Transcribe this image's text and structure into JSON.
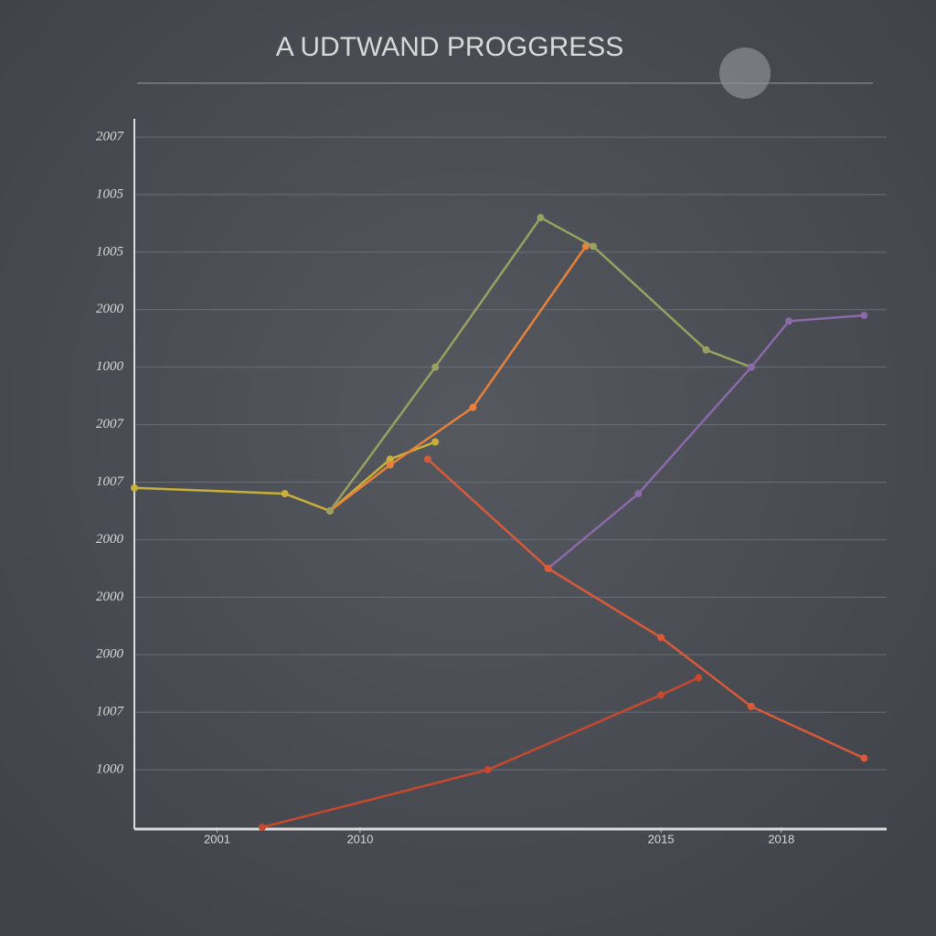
{
  "chart_data": {
    "type": "line",
    "title": "A UDTWAND PROGGRESS",
    "xlim": [
      0,
      100
    ],
    "ylim": [
      0,
      12
    ],
    "xticks": [
      {
        "value": 11,
        "label": "2001"
      },
      {
        "value": 30,
        "label": "2010"
      },
      {
        "value": 70,
        "label": "2015"
      },
      {
        "value": 86,
        "label": "2018"
      }
    ],
    "yticks": [
      {
        "value": 1,
        "label": "1000"
      },
      {
        "value": 2,
        "label": "1007"
      },
      {
        "value": 3,
        "label": "2000"
      },
      {
        "value": 4,
        "label": "2000"
      },
      {
        "value": 5,
        "label": "2000"
      },
      {
        "value": 6,
        "label": "1007"
      },
      {
        "value": 7,
        "label": "2007"
      },
      {
        "value": 8,
        "label": "1000"
      },
      {
        "value": 9,
        "label": "2000"
      },
      {
        "value": 10,
        "label": "1005"
      },
      {
        "value": 11,
        "label": "1005"
      },
      {
        "value": 12,
        "label": "2007"
      }
    ],
    "grid": true,
    "series": [
      {
        "color": "#c9b03a",
        "x": [
          0,
          20,
          26,
          34,
          40
        ],
        "values": [
          5.9,
          5.8,
          5.5,
          6.4,
          6.7
        ]
      },
      {
        "color": "#e8823a",
        "x": [
          26,
          34,
          45,
          60
        ],
        "values": [
          5.5,
          6.3,
          7.3,
          10.1
        ]
      },
      {
        "color": "#9aa060",
        "x": [
          26,
          40,
          54,
          61,
          76,
          82
        ],
        "values": [
          5.5,
          8.0,
          10.6,
          10.1,
          8.3,
          8.0
        ]
      },
      {
        "color": "#8a6aa8",
        "x": [
          55,
          67,
          82,
          87,
          97
        ],
        "values": [
          4.5,
          5.8,
          8.0,
          8.8,
          8.9
        ]
      },
      {
        "color": "#d85a3a",
        "x": [
          39,
          55,
          70,
          82,
          97
        ],
        "values": [
          6.4,
          4.5,
          3.3,
          2.1,
          1.2
        ]
      },
      {
        "color": "#c8482e",
        "x": [
          17,
          47,
          70,
          75
        ],
        "values": [
          0,
          1,
          2.3,
          2.6
        ]
      }
    ]
  }
}
